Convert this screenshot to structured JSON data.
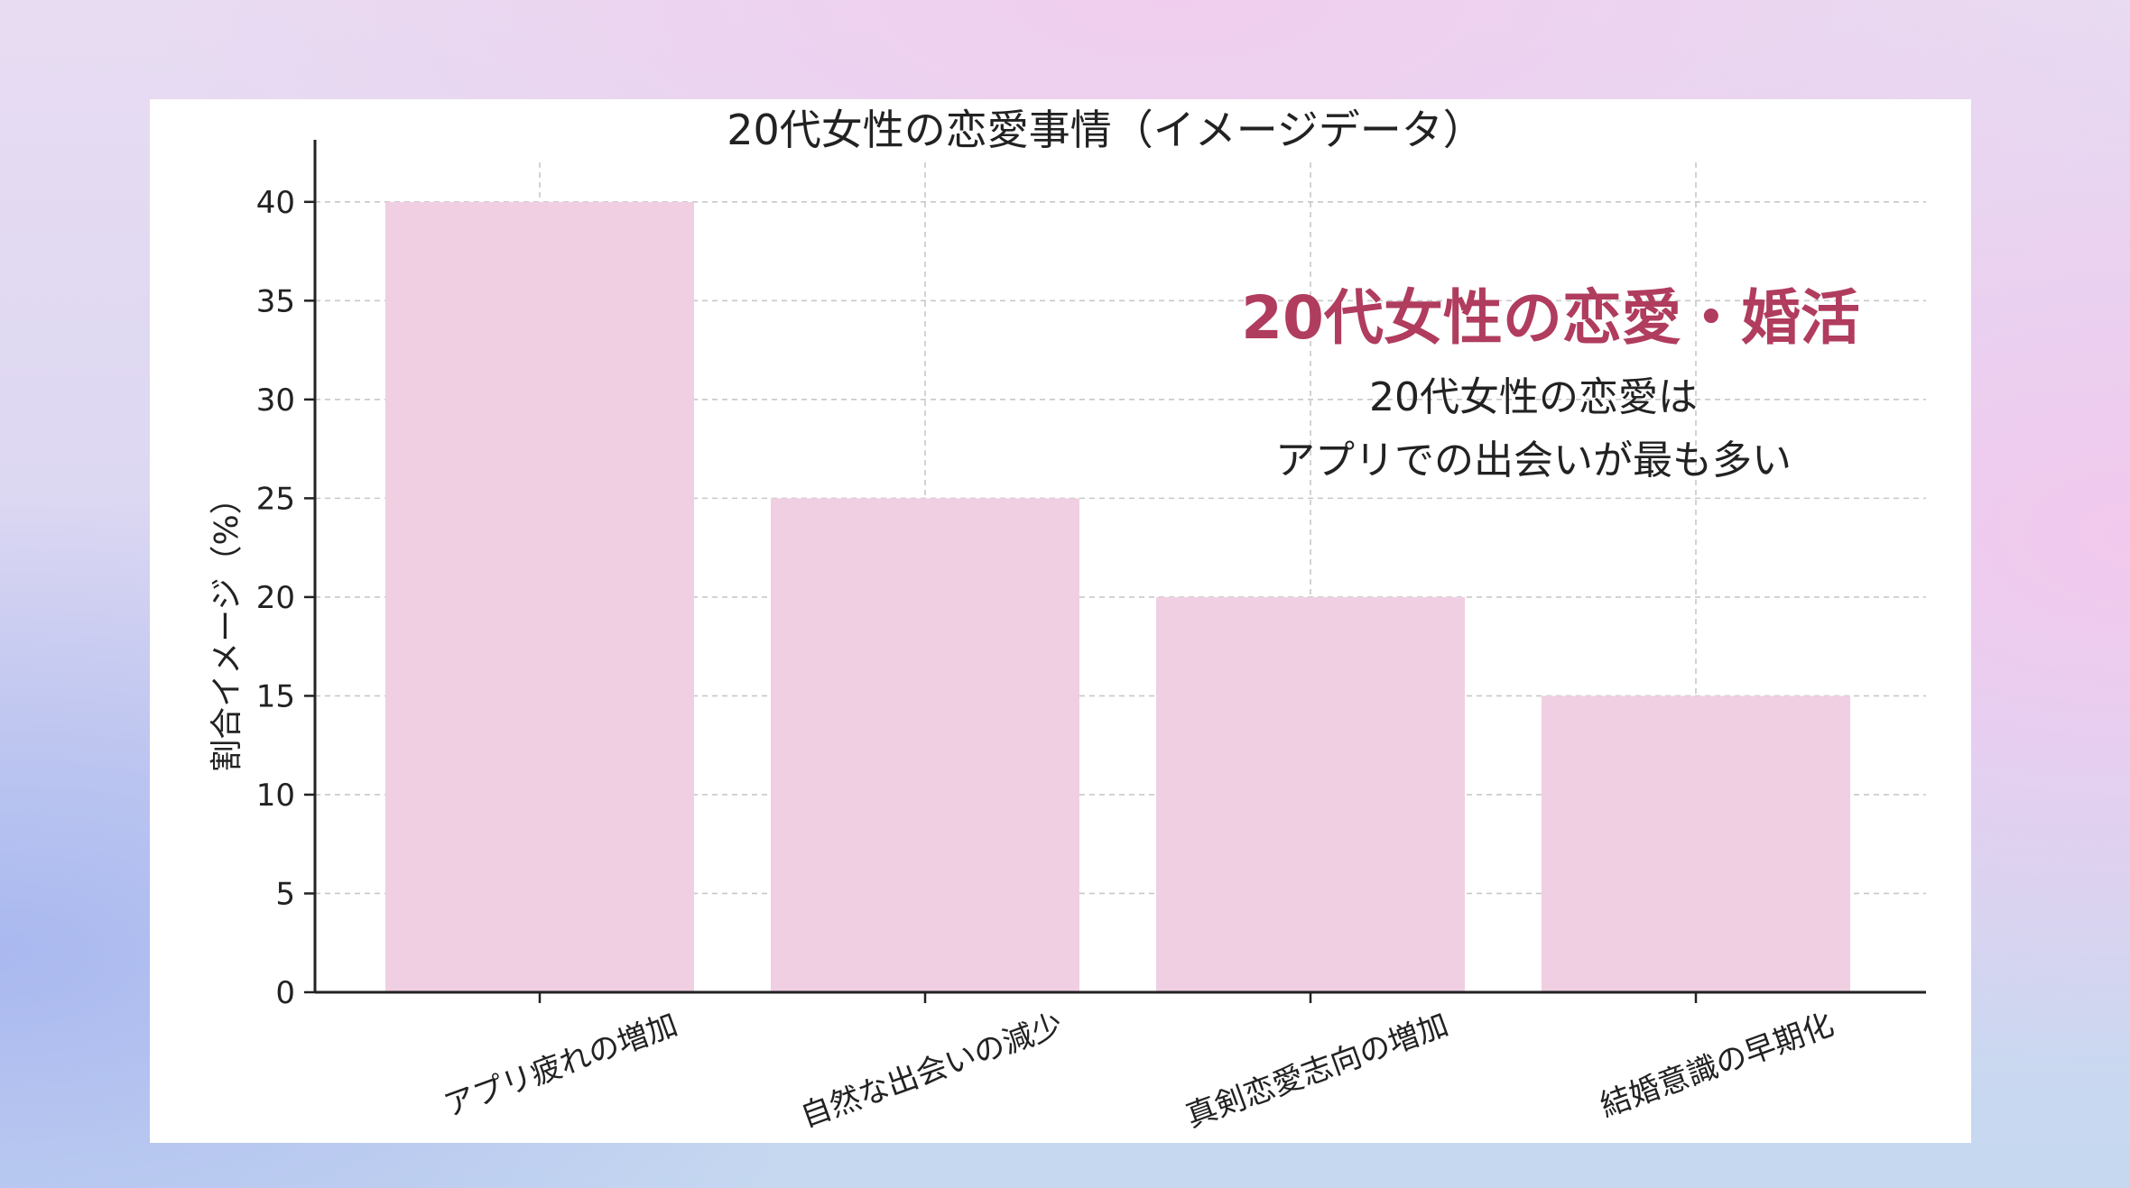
{
  "chart_data": {
    "type": "bar",
    "title": "20代女性の恋愛事情（イメージデータ）",
    "xlabel": "",
    "ylabel": "割合イメージ（%）",
    "categories": [
      "アプリ疲れの増加",
      "自然な出会いの減少",
      "真剣恋愛志向の増加",
      "結婚意識の早期化"
    ],
    "values": [
      40,
      25,
      20,
      15
    ],
    "ylim": [
      0,
      42
    ],
    "yticks": [
      0,
      5,
      10,
      15,
      20,
      25,
      30,
      35,
      40
    ],
    "grid": true,
    "bar_color": "#f0cfe2"
  },
  "overlay": {
    "heading": "20代女性の恋愛・婚活",
    "heading_color": "#b03c5e",
    "line1": "20代女性の恋愛は",
    "line2": "アプリでの出会いが最も多い"
  }
}
